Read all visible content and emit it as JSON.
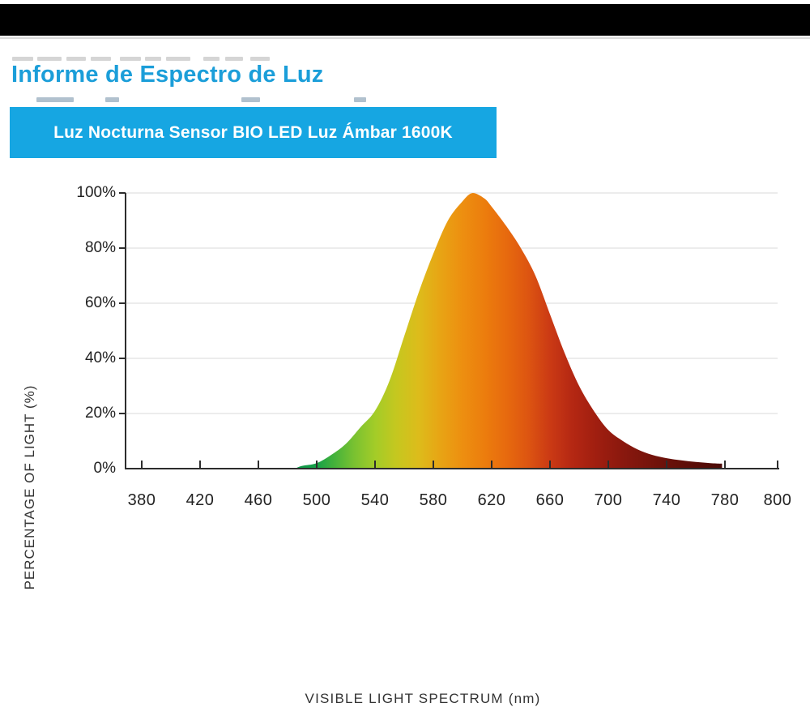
{
  "page": {
    "background": "#ffffff",
    "top_bar_color": "#000000",
    "divider_color": "#d9d9d9"
  },
  "header": {
    "title": "Informe de Espectro de Luz",
    "title_color": "#1b9ed9",
    "banner_label": "Luz Nocturna Sensor BIO LED Luz Ámbar 1600K",
    "banner_bg": "#16a6e2",
    "banner_text_color": "#ffffff"
  },
  "chart_data": {
    "type": "area",
    "title": "",
    "xlabel": "VISIBLE LIGHT SPECTRUM (nm)",
    "ylabel": "PERCENTAGE OF LIGHT (%)",
    "xlim": [
      380,
      800
    ],
    "ylim": [
      0,
      100
    ],
    "x_tick_labels": [
      380,
      420,
      460,
      500,
      540,
      580,
      620,
      660,
      700,
      740,
      780,
      800
    ],
    "y_tick_labels": [
      "0%",
      "20%",
      "40%",
      "60%",
      "80%",
      "100%"
    ],
    "grid": "horizontal-every-20pct",
    "legend": "none",
    "peak_nm": 607,
    "peak_pct": 100,
    "points": [
      [
        485,
        0
      ],
      [
        490,
        1
      ],
      [
        500,
        2
      ],
      [
        510,
        5
      ],
      [
        520,
        9
      ],
      [
        530,
        15
      ],
      [
        540,
        21
      ],
      [
        550,
        32
      ],
      [
        560,
        48
      ],
      [
        570,
        64
      ],
      [
        580,
        78
      ],
      [
        590,
        90
      ],
      [
        600,
        97
      ],
      [
        607,
        100
      ],
      [
        615,
        98
      ],
      [
        620,
        95
      ],
      [
        630,
        88
      ],
      [
        640,
        80
      ],
      [
        650,
        70
      ],
      [
        660,
        56
      ],
      [
        670,
        42
      ],
      [
        680,
        30
      ],
      [
        690,
        21
      ],
      [
        700,
        14
      ],
      [
        710,
        10
      ],
      [
        720,
        7
      ],
      [
        730,
        5
      ],
      [
        740,
        3.8
      ],
      [
        750,
        3
      ],
      [
        760,
        2.4
      ],
      [
        770,
        2
      ],
      [
        778,
        1.8
      ]
    ],
    "gradient_stops": [
      [
        485,
        "#0E9447"
      ],
      [
        500,
        "#17A148"
      ],
      [
        512,
        "#44B23B"
      ],
      [
        525,
        "#78C131"
      ],
      [
        540,
        "#A3CC28"
      ],
      [
        555,
        "#C6C71F"
      ],
      [
        570,
        "#DDBC1B"
      ],
      [
        585,
        "#E8A414"
      ],
      [
        600,
        "#ED8F10"
      ],
      [
        615,
        "#EC7D0D"
      ],
      [
        630,
        "#E76A0E"
      ],
      [
        645,
        "#DD5511"
      ],
      [
        660,
        "#CB3A14"
      ],
      [
        675,
        "#B52813"
      ],
      [
        690,
        "#A21F10"
      ],
      [
        710,
        "#8A180E"
      ],
      [
        735,
        "#6F120A"
      ],
      [
        760,
        "#590D07"
      ],
      [
        778,
        "#4B0B06"
      ]
    ],
    "axis_colors": {
      "text": "#222222",
      "axis": "#2d2d2d",
      "grid": "#ececec"
    }
  }
}
